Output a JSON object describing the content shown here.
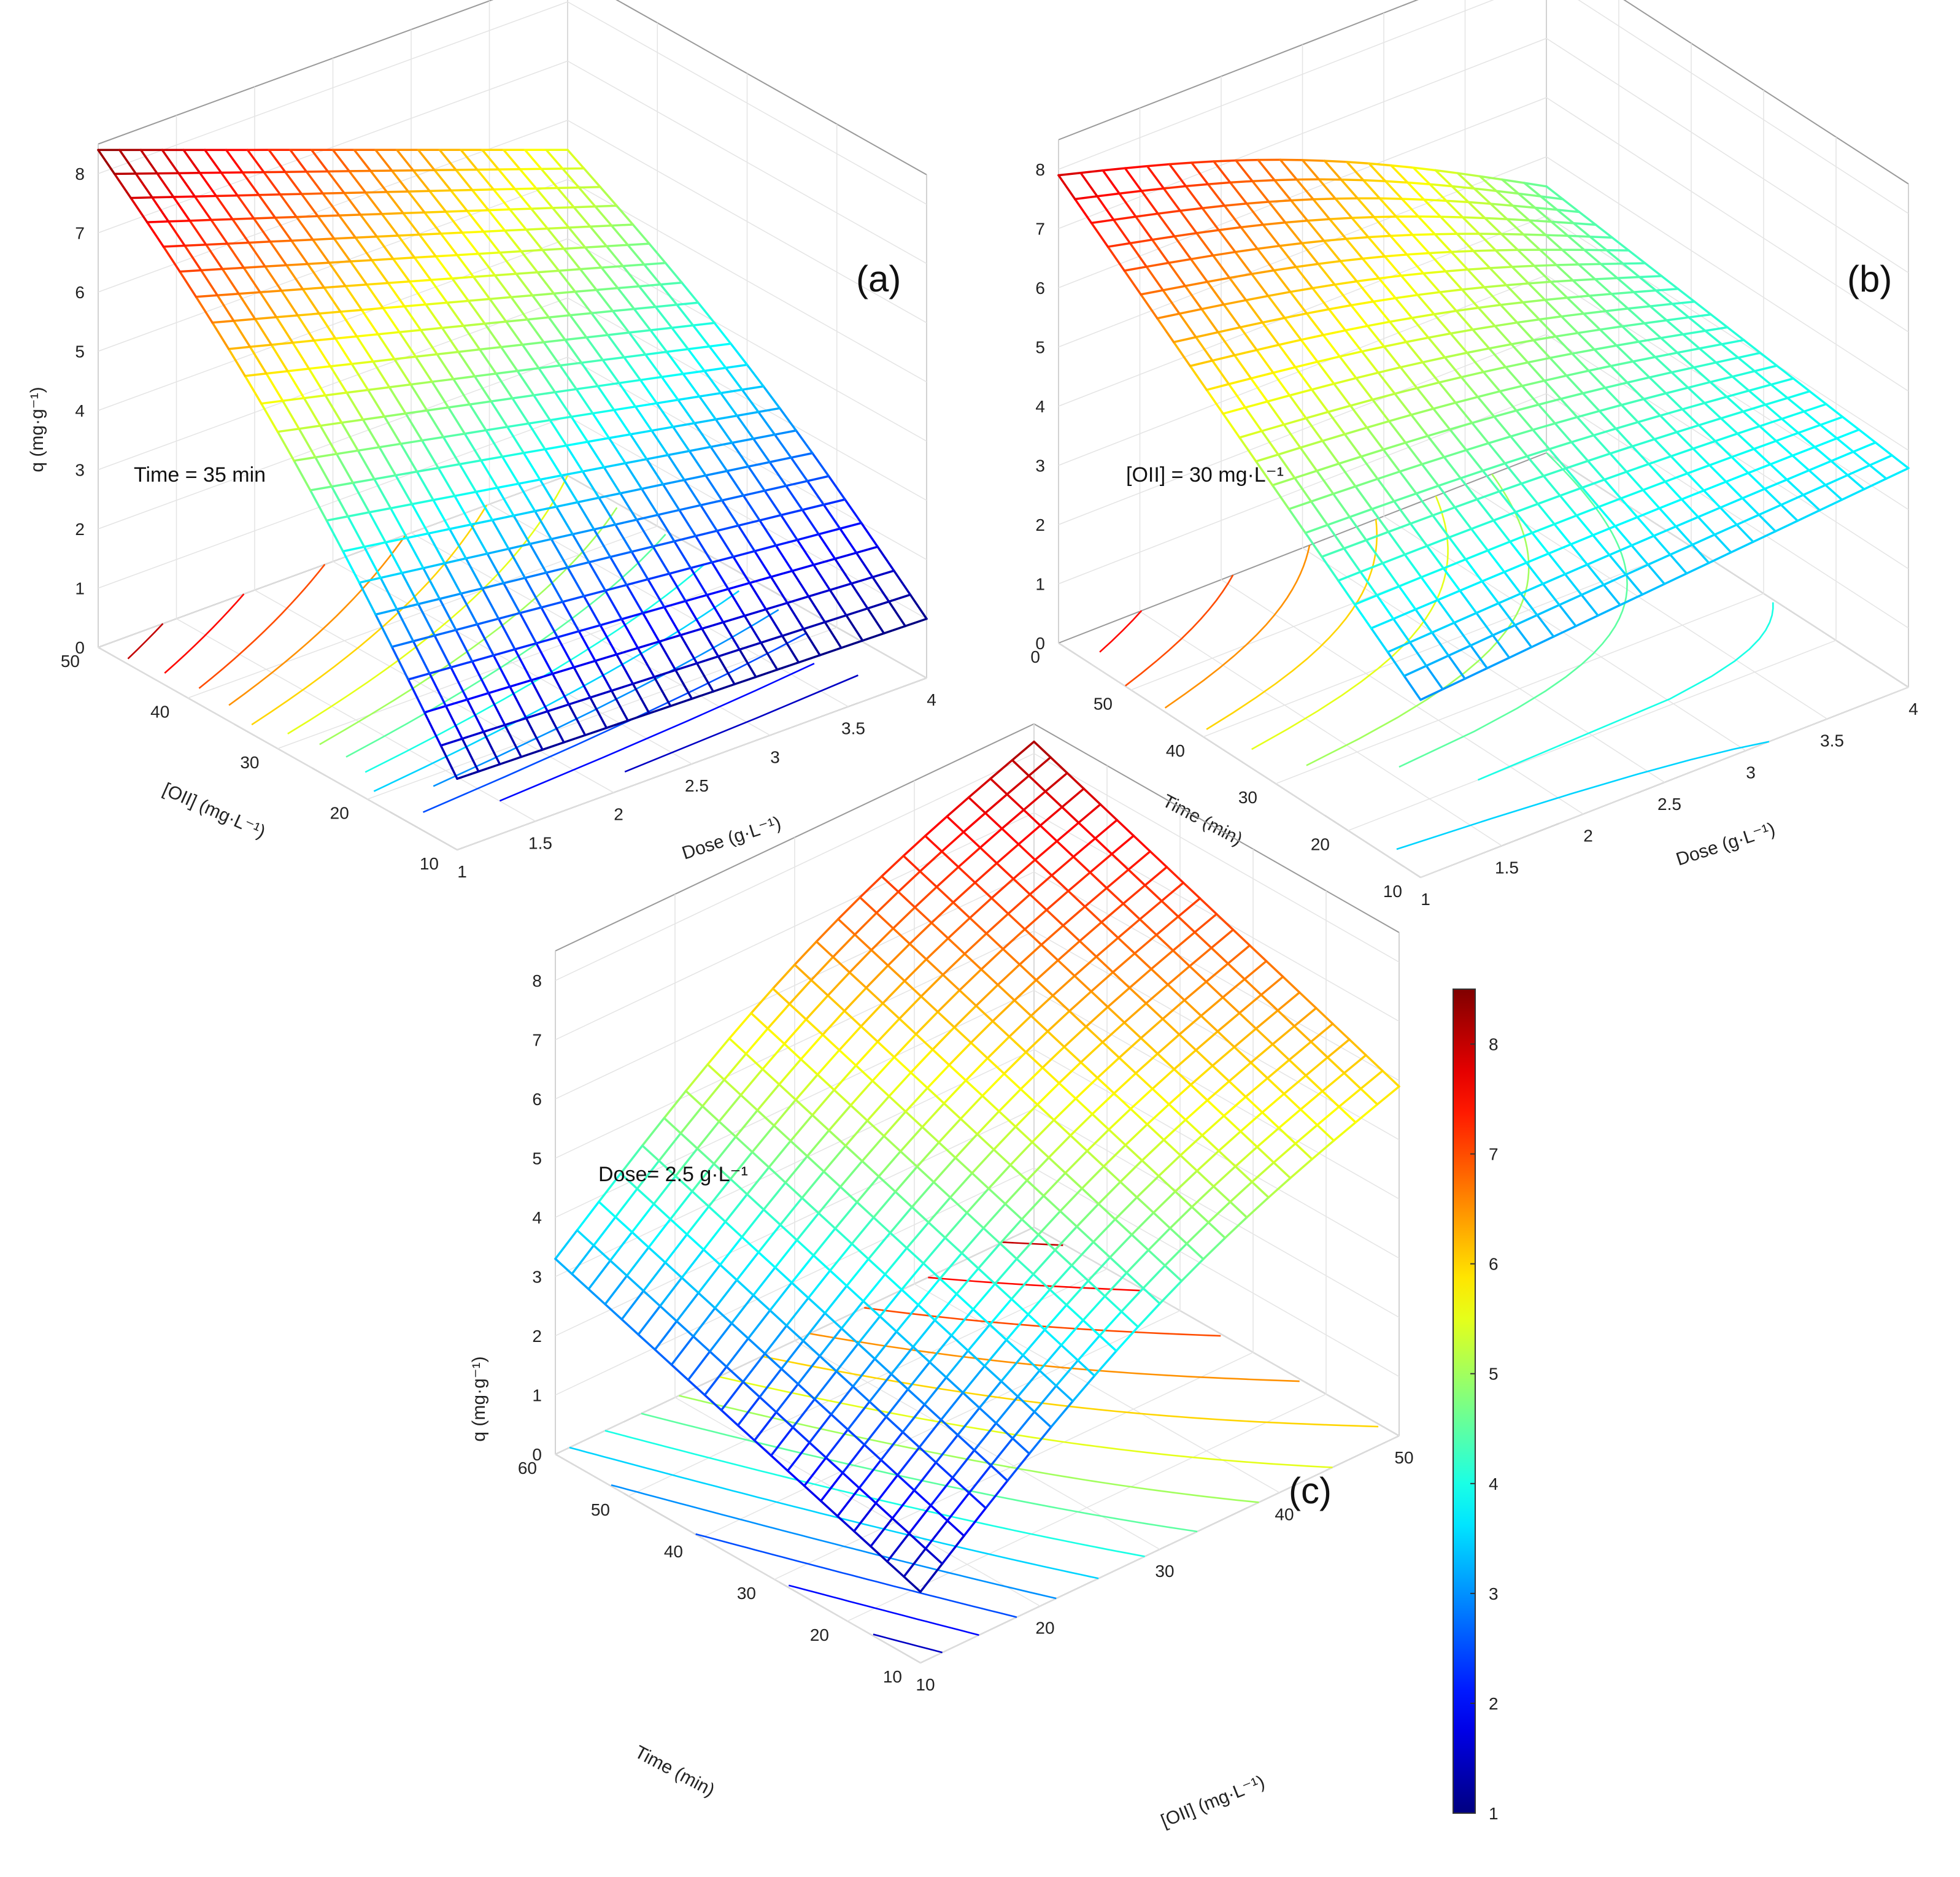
{
  "chart_data": [
    {
      "type": "surface",
      "panel_label": "(a)",
      "condition": "Time = 35 min",
      "zlabel": "q (mg·g⁻¹)",
      "xlabel": "Dose (g·L⁻¹)",
      "ylabel": "[OII] (mg·L⁻¹)",
      "x_ticks": [
        "1",
        "1.5",
        "2",
        "2.5",
        "3",
        "3.5",
        "4"
      ],
      "y_ticks": [
        "10",
        "20",
        "30",
        "40",
        "50"
      ],
      "z_ticks": [
        "0",
        "1",
        "2",
        "3",
        "4",
        "5",
        "6",
        "7",
        "8"
      ],
      "xlim": [
        1,
        4
      ],
      "ylim": [
        10,
        50
      ],
      "zlim": [
        0,
        8.5
      ],
      "corner_values": [
        {
          "dose": 1,
          "oii": 50,
          "q": 8.4
        },
        {
          "dose": 4,
          "oii": 50,
          "q": 5.5
        },
        {
          "dose": 1,
          "oii": 10,
          "q": 1.2
        },
        {
          "dose": 4,
          "oii": 10,
          "q": 1.0
        }
      ]
    },
    {
      "type": "surface",
      "panel_label": "(b)",
      "condition": "[OII] = 30 mg·L⁻¹",
      "zlabel": "",
      "xlabel": "Dose (g·L⁻¹)",
      "ylabel": "Time (min)",
      "x_ticks": [
        "1",
        "1.5",
        "2",
        "2.5",
        "3",
        "3.5",
        "4"
      ],
      "y_ticks": [
        "10",
        "20",
        "30",
        "40",
        "50",
        "0"
      ],
      "z_ticks": [
        "0",
        "1",
        "2",
        "3",
        "4",
        "5",
        "6",
        "7",
        "8"
      ],
      "xlim": [
        1,
        4
      ],
      "ylim": [
        10,
        60
      ],
      "zlim": [
        0,
        8.5
      ],
      "corner_values": [
        {
          "dose": 1,
          "time": 60,
          "q": 7.9
        },
        {
          "dose": 4,
          "time": 60,
          "q": 4.5
        },
        {
          "dose": 1,
          "time": 10,
          "q": 3.0
        },
        {
          "dose": 4,
          "time": 10,
          "q": 3.7
        }
      ]
    },
    {
      "type": "surface",
      "panel_label": "(c)",
      "condition": "Dose= 2.5 g·L⁻¹",
      "zlabel": "q (mg·g⁻¹)",
      "xlabel": "[OII] (mg·L⁻¹)",
      "ylabel": "Time (min)",
      "x_ticks": [
        "10",
        "20",
        "30",
        "40",
        "50"
      ],
      "y_ticks": [
        "10",
        "20",
        "30",
        "40",
        "50",
        "60"
      ],
      "z_ticks": [
        "0",
        "1",
        "2",
        "3",
        "4",
        "5",
        "6",
        "7",
        "8"
      ],
      "xlim": [
        10,
        50
      ],
      "ylim": [
        10,
        60
      ],
      "zlim": [
        0,
        8.5
      ],
      "corner_values": [
        {
          "oii": 10,
          "time": 60,
          "q": 3.3
        },
        {
          "oii": 50,
          "time": 60,
          "q": 8.2
        },
        {
          "oii": 10,
          "time": 10,
          "q": 1.2
        },
        {
          "oii": 50,
          "time": 10,
          "q": 5.9
        }
      ]
    }
  ],
  "colorbar": {
    "ticks": [
      "1",
      "2",
      "3",
      "4",
      "5",
      "6",
      "7",
      "8"
    ],
    "range": [
      1,
      8.5
    ],
    "colormap": "jet"
  }
}
